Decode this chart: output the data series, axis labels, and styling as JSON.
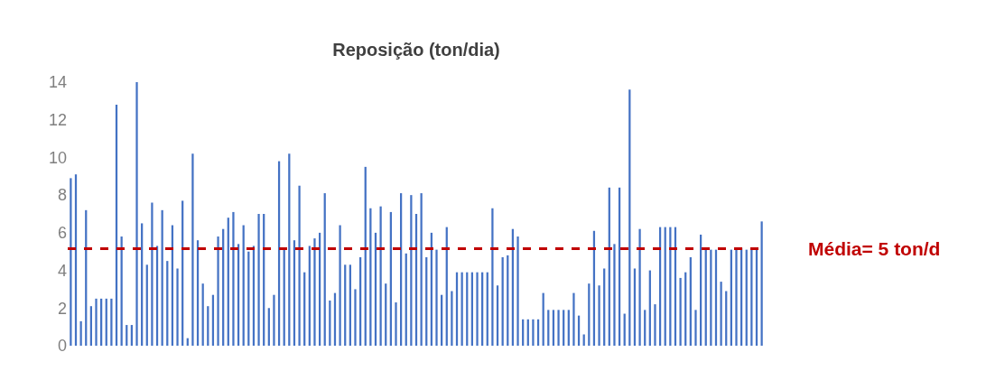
{
  "chart_data": {
    "type": "bar",
    "title": "Reposição (ton/dia)",
    "categories": [
      null,
      null,
      null,
      null,
      null,
      null,
      null,
      null,
      null,
      null,
      null,
      null,
      null,
      null,
      null,
      null,
      null,
      null,
      null,
      null,
      null,
      null,
      null,
      null,
      null,
      null,
      null,
      null,
      null,
      null,
      null,
      null,
      null,
      null,
      null,
      null,
      null,
      null,
      null,
      null,
      null,
      null,
      null,
      null,
      null,
      null,
      null,
      null,
      null,
      null,
      null,
      null,
      null,
      null,
      null,
      null,
      null,
      null,
      null,
      null,
      null,
      null,
      null,
      null,
      null,
      null,
      null,
      null,
      null,
      null,
      null,
      null,
      null,
      null,
      null,
      null,
      null,
      null,
      null,
      null,
      null,
      null,
      null,
      null,
      null,
      null,
      null,
      null,
      null,
      null,
      null,
      null,
      null,
      null,
      null,
      null,
      null,
      null,
      null,
      null,
      null,
      null,
      null,
      null,
      null,
      null,
      null,
      null,
      null,
      null,
      null,
      null,
      null,
      null,
      null,
      null,
      null,
      null,
      null,
      null,
      null,
      null,
      null,
      null,
      null,
      null,
      null,
      null,
      null,
      null,
      null,
      null,
      null,
      null,
      null,
      null,
      null
    ],
    "values": [
      8.9,
      9.1,
      1.3,
      7.2,
      2.1,
      2.5,
      2.5,
      2.5,
      2.5,
      12.8,
      5.8,
      1.1,
      1.1,
      14.0,
      6.5,
      4.3,
      7.6,
      5.3,
      7.2,
      4.5,
      6.4,
      4.1,
      7.7,
      0.4,
      10.2,
      5.6,
      3.3,
      2.1,
      2.7,
      5.8,
      6.2,
      6.8,
      7.1,
      5.4,
      6.4,
      5.0,
      5.3,
      7.0,
      7.0,
      2.0,
      2.7,
      9.8,
      5.1,
      10.2,
      5.6,
      8.5,
      3.9,
      5.3,
      5.7,
      6.0,
      8.1,
      2.4,
      2.8,
      6.4,
      4.3,
      4.3,
      3.0,
      4.7,
      9.5,
      7.3,
      6.0,
      7.4,
      3.3,
      7.1,
      2.3,
      8.1,
      4.9,
      8.0,
      7.0,
      8.1,
      4.7,
      6.0,
      5.1,
      2.7,
      6.3,
      2.9,
      3.9,
      3.9,
      3.9,
      3.9,
      3.9,
      3.9,
      3.9,
      7.3,
      3.2,
      4.7,
      4.8,
      6.2,
      5.8,
      1.4,
      1.4,
      1.4,
      1.4,
      2.8,
      1.9,
      1.9,
      1.9,
      1.9,
      1.9,
      2.8,
      1.6,
      0.6,
      3.3,
      6.1,
      3.2,
      4.1,
      8.4,
      5.4,
      8.4,
      1.7,
      13.6,
      4.1,
      6.2,
      1.9,
      4.0,
      2.2,
      6.3,
      6.3,
      6.3,
      6.3,
      3.6,
      3.9,
      4.7,
      1.9,
      5.9,
      5.1,
      5.1,
      5.1,
      3.4,
      2.9,
      5.1,
      5.1,
      5.2,
      5.1,
      5.1,
      5.2,
      6.6
    ],
    "color": "#4472c4",
    "ylim": [
      0,
      14
    ],
    "yticks": [
      0,
      2,
      4,
      6,
      8,
      10,
      12,
      14
    ],
    "tick_labels": "y",
    "ref_lines": [
      {
        "axis": "y",
        "value": 5.15,
        "label": "Média= 5 ton/d",
        "color": "#c00000",
        "line_style": "dashed"
      }
    ]
  }
}
